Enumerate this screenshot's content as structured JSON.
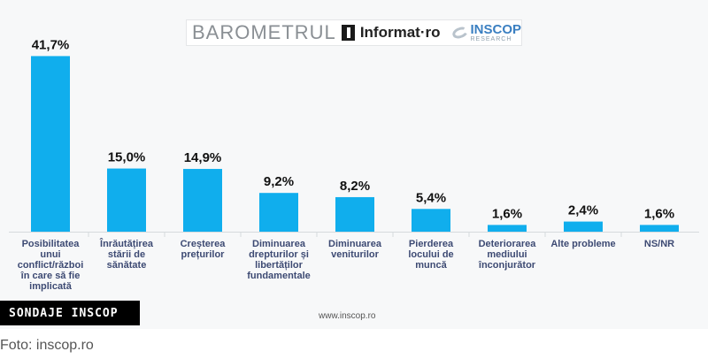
{
  "brand": {
    "barometru": "BAROMETRUL",
    "informat": "Informat·ro",
    "inscop_name": "INSCOP",
    "inscop_sub": "RESEARCH"
  },
  "footer": {
    "website": "www.inscop.ro",
    "badge": "SONDAJE INSCOP",
    "caption": "Foto: inscop.ro"
  },
  "colors": {
    "bar": "#10aeed",
    "background": "#f7f8f9",
    "category_text": "#3d4a73"
  },
  "chart_data": {
    "type": "bar",
    "categories": [
      [
        "Posibilitatea",
        "unui",
        "conflict/război",
        "în care să fie",
        "implicată"
      ],
      [
        "Înrăutățirea",
        "stării de",
        "sănătate"
      ],
      [
        "Creșterea",
        "prețurilor"
      ],
      [
        "Diminuarea",
        "drepturilor și",
        "libertăților",
        "fundamentale"
      ],
      [
        "Diminuarea",
        "veniturilor"
      ],
      [
        "Pierderea",
        "locului de",
        "muncă"
      ],
      [
        "Deteriorarea",
        "mediului",
        "înconjurător"
      ],
      [
        "Alte probleme"
      ],
      [
        "NS/NR"
      ]
    ],
    "values": [
      41.7,
      15.0,
      14.9,
      9.2,
      8.2,
      5.4,
      1.6,
      2.4,
      1.6
    ],
    "value_labels": [
      "41,7%",
      "15,0%",
      "14,9%",
      "9,2%",
      "8,2%",
      "5,4%",
      "1,6%",
      "2,4%",
      "1,6%"
    ],
    "ylim": [
      0,
      42
    ],
    "grid": false,
    "legend": "none"
  }
}
